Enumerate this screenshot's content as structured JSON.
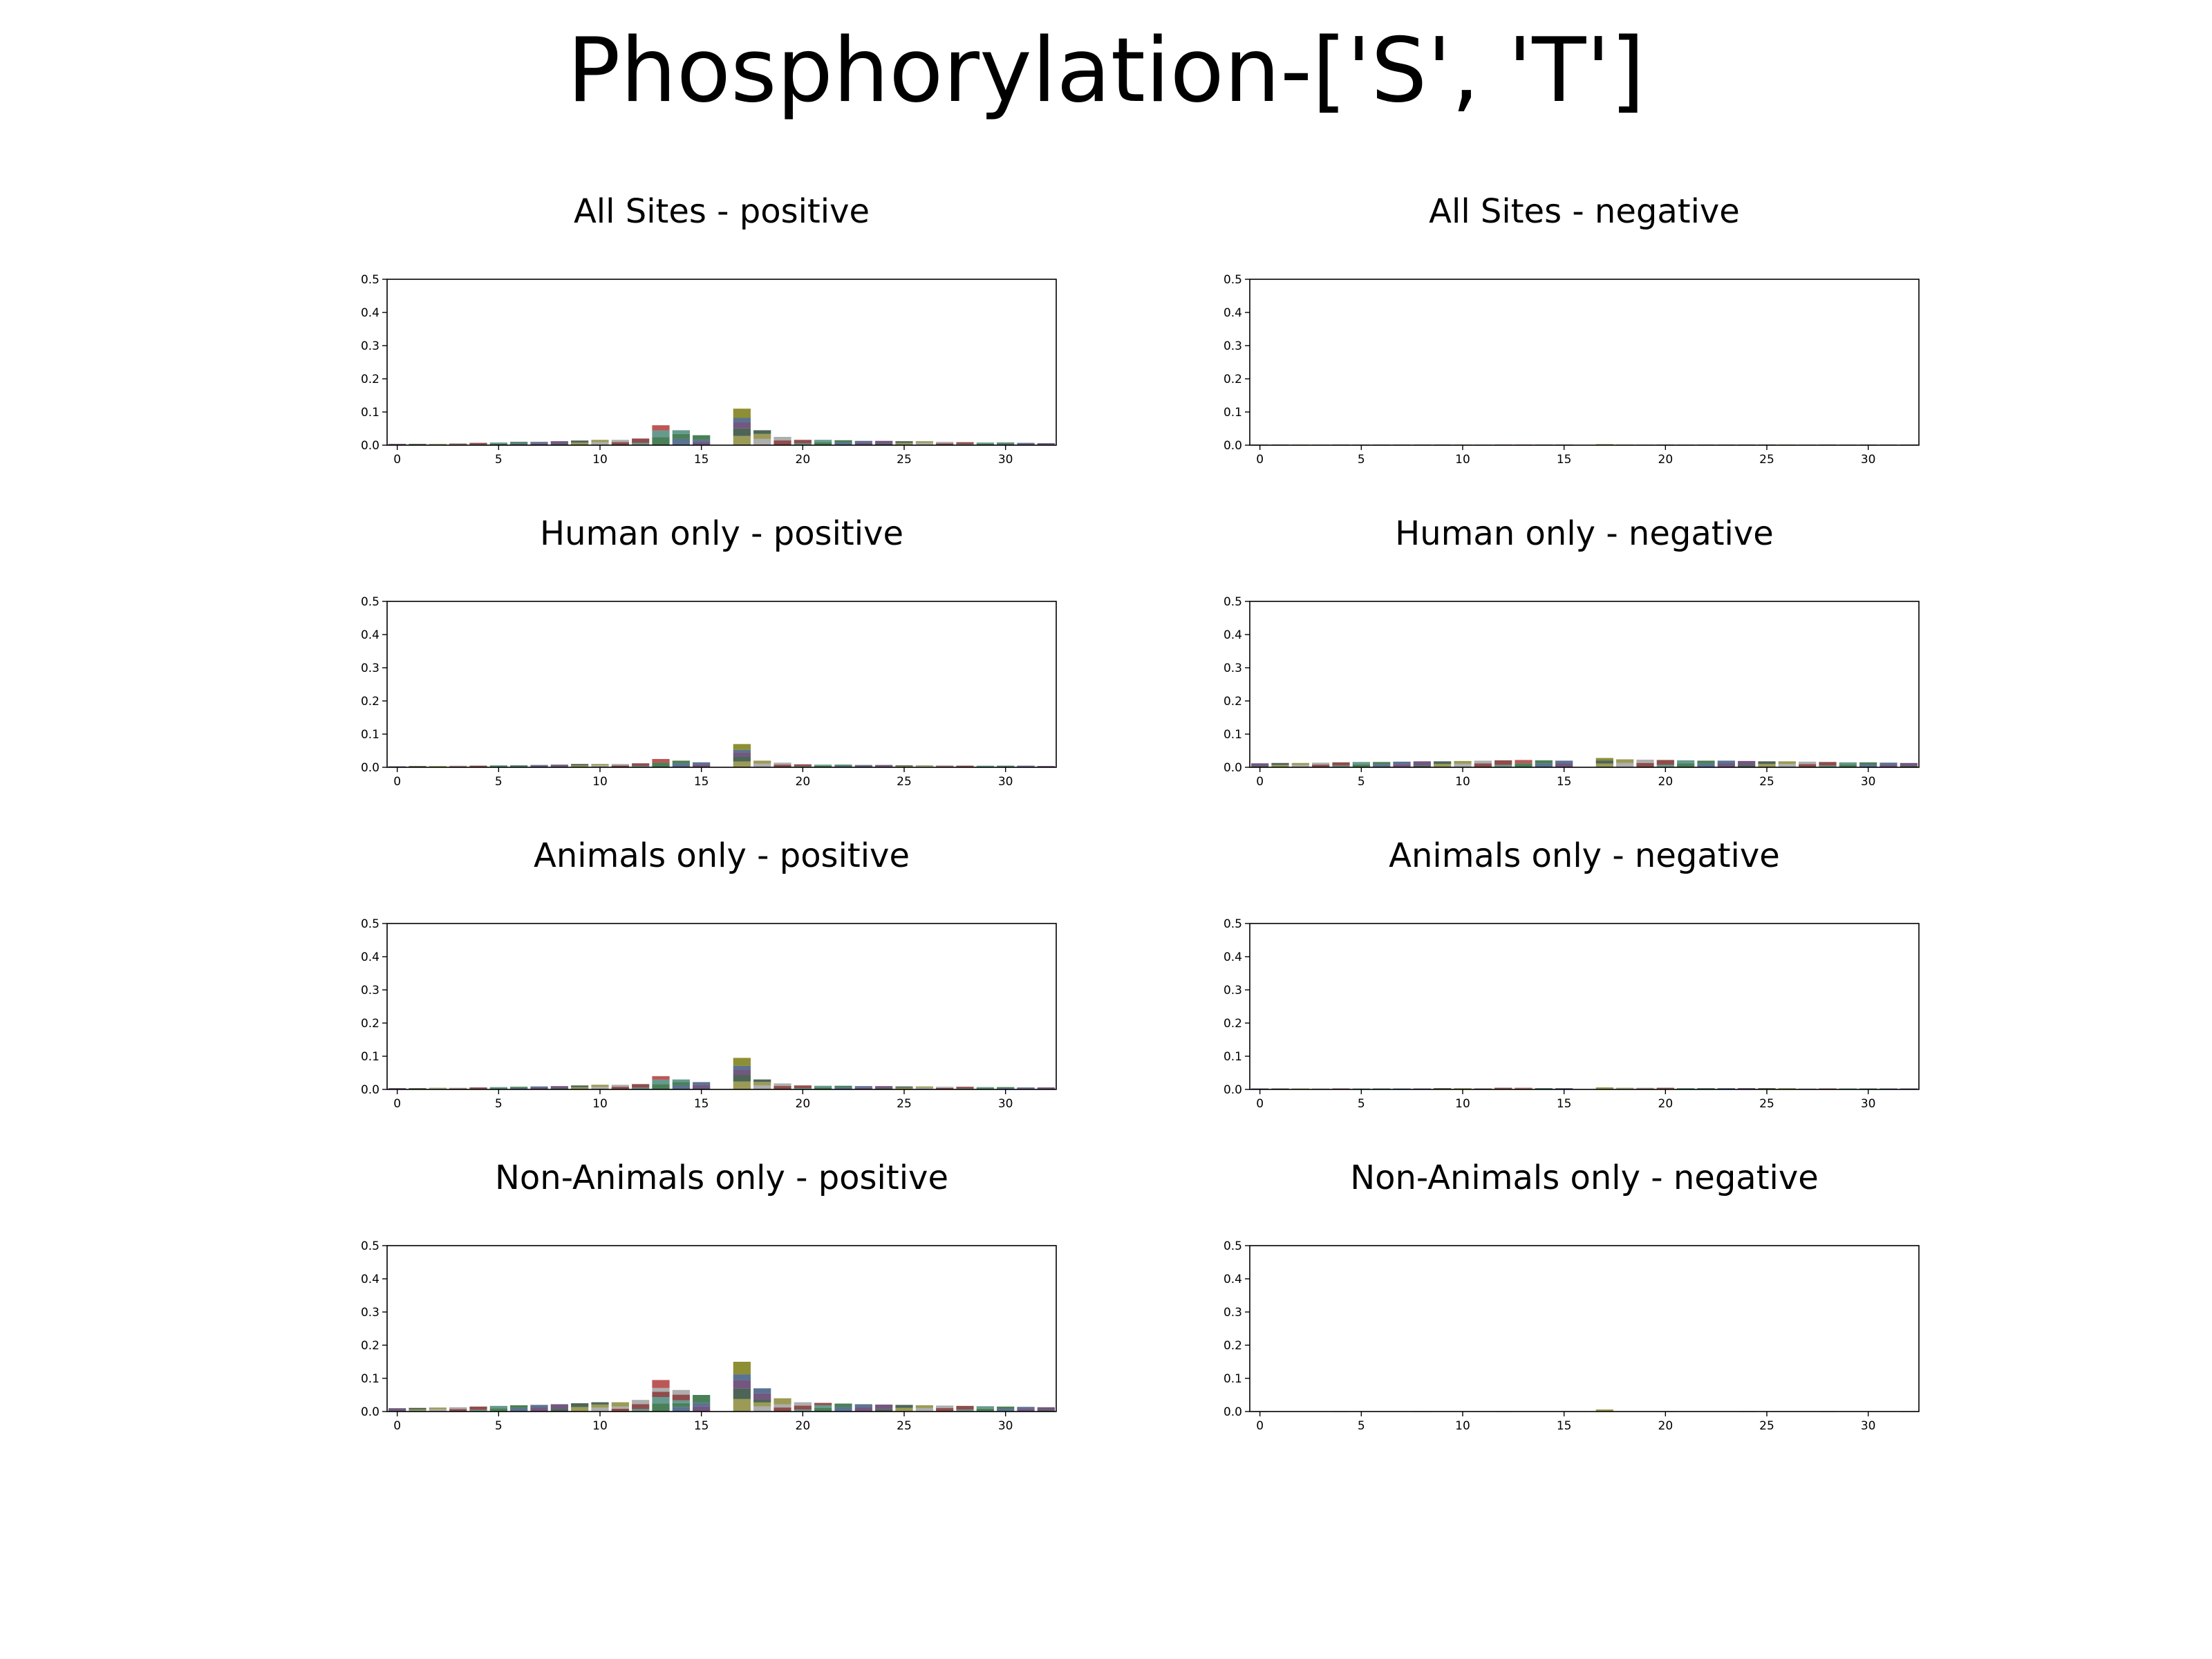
{
  "suptitle": "Phosphorylation-['S', 'T']",
  "chart_data": [
    {
      "type": "bar",
      "title": "All Sites - positive",
      "x": [
        0,
        1,
        2,
        3,
        4,
        5,
        6,
        7,
        8,
        9,
        10,
        11,
        12,
        13,
        14,
        15,
        16,
        17,
        18,
        19,
        20,
        21,
        22,
        23,
        24,
        25,
        26,
        27,
        28,
        29,
        30,
        31,
        32
      ],
      "values": [
        0.004,
        0.004,
        0.004,
        0.006,
        0.007,
        0.008,
        0.01,
        0.01,
        0.012,
        0.014,
        0.016,
        0.016,
        0.02,
        0.06,
        0.045,
        0.03,
        0.0,
        0.11,
        0.045,
        0.025,
        0.016,
        0.016,
        0.015,
        0.013,
        0.013,
        0.012,
        0.012,
        0.01,
        0.009,
        0.008,
        0.008,
        0.007,
        0.006
      ],
      "xticks": [
        0,
        5,
        10,
        15,
        20,
        25,
        30
      ],
      "yticks": [
        0.0,
        0.1,
        0.2,
        0.3,
        0.4,
        0.5
      ],
      "xlim": [
        -0.5,
        32.5
      ],
      "ylim": [
        0,
        0.5
      ]
    },
    {
      "type": "bar",
      "title": "All Sites - negative",
      "x": [
        0,
        1,
        2,
        3,
        4,
        5,
        6,
        7,
        8,
        9,
        10,
        11,
        12,
        13,
        14,
        15,
        16,
        17,
        18,
        19,
        20,
        21,
        22,
        23,
        24,
        25,
        26,
        27,
        28,
        29,
        30,
        31,
        32
      ],
      "values": [
        0.002,
        0.002,
        0.002,
        0.002,
        0.002,
        0.002,
        0.002,
        0.002,
        0.002,
        0.002,
        0.002,
        0.002,
        0.002,
        0.002,
        0.002,
        0.002,
        0.0,
        0.003,
        0.002,
        0.002,
        0.002,
        0.002,
        0.002,
        0.002,
        0.002,
        0.002,
        0.002,
        0.002,
        0.002,
        0.002,
        0.002,
        0.002,
        0.002
      ],
      "xticks": [
        0,
        5,
        10,
        15,
        20,
        25,
        30
      ],
      "yticks": [
        0.0,
        0.1,
        0.2,
        0.3,
        0.4,
        0.5
      ],
      "xlim": [
        -0.5,
        32.5
      ],
      "ylim": [
        0,
        0.5
      ]
    },
    {
      "type": "bar",
      "title": "Human only - positive",
      "x": [
        0,
        1,
        2,
        3,
        4,
        5,
        6,
        7,
        8,
        9,
        10,
        11,
        12,
        13,
        14,
        15,
        16,
        17,
        18,
        19,
        20,
        21,
        22,
        23,
        24,
        25,
        26,
        27,
        28,
        29,
        30,
        31,
        32
      ],
      "values": [
        0.003,
        0.004,
        0.004,
        0.005,
        0.005,
        0.006,
        0.006,
        0.007,
        0.008,
        0.01,
        0.01,
        0.01,
        0.012,
        0.025,
        0.02,
        0.015,
        0.0,
        0.07,
        0.02,
        0.014,
        0.009,
        0.008,
        0.008,
        0.007,
        0.007,
        0.006,
        0.006,
        0.006,
        0.005,
        0.005,
        0.005,
        0.005,
        0.004
      ],
      "xticks": [
        0,
        5,
        10,
        15,
        20,
        25,
        30
      ],
      "yticks": [
        0.0,
        0.1,
        0.2,
        0.3,
        0.4,
        0.5
      ],
      "xlim": [
        -0.5,
        32.5
      ],
      "ylim": [
        0,
        0.5
      ]
    },
    {
      "type": "bar",
      "title": "Human only - negative",
      "x": [
        0,
        1,
        2,
        3,
        4,
        5,
        6,
        7,
        8,
        9,
        10,
        11,
        12,
        13,
        14,
        15,
        16,
        17,
        18,
        19,
        20,
        21,
        22,
        23,
        24,
        25,
        26,
        27,
        28,
        29,
        30,
        31,
        32
      ],
      "values": [
        0.012,
        0.013,
        0.013,
        0.014,
        0.015,
        0.016,
        0.016,
        0.017,
        0.018,
        0.018,
        0.019,
        0.02,
        0.021,
        0.022,
        0.021,
        0.02,
        0.0,
        0.028,
        0.024,
        0.023,
        0.022,
        0.021,
        0.02,
        0.02,
        0.019,
        0.018,
        0.018,
        0.017,
        0.016,
        0.015,
        0.015,
        0.014,
        0.013
      ],
      "xticks": [
        0,
        5,
        10,
        15,
        20,
        25,
        30
      ],
      "yticks": [
        0.0,
        0.1,
        0.2,
        0.3,
        0.4,
        0.5
      ],
      "xlim": [
        -0.5,
        32.5
      ],
      "ylim": [
        0,
        0.5
      ]
    },
    {
      "type": "bar",
      "title": "Animals only - positive",
      "x": [
        0,
        1,
        2,
        3,
        4,
        5,
        6,
        7,
        8,
        9,
        10,
        11,
        12,
        13,
        14,
        15,
        16,
        17,
        18,
        19,
        20,
        21,
        22,
        23,
        24,
        25,
        26,
        27,
        28,
        29,
        30,
        31,
        32
      ],
      "values": [
        0.004,
        0.004,
        0.005,
        0.005,
        0.006,
        0.007,
        0.008,
        0.009,
        0.01,
        0.012,
        0.014,
        0.014,
        0.016,
        0.04,
        0.03,
        0.022,
        0.0,
        0.095,
        0.03,
        0.018,
        0.012,
        0.011,
        0.011,
        0.01,
        0.01,
        0.009,
        0.009,
        0.008,
        0.008,
        0.007,
        0.007,
        0.006,
        0.006
      ],
      "xticks": [
        0,
        5,
        10,
        15,
        20,
        25,
        30
      ],
      "yticks": [
        0.0,
        0.1,
        0.2,
        0.3,
        0.4,
        0.5
      ],
      "xlim": [
        -0.5,
        32.5
      ],
      "ylim": [
        0,
        0.5
      ]
    },
    {
      "type": "bar",
      "title": "Animals only - negative",
      "x": [
        0,
        1,
        2,
        3,
        4,
        5,
        6,
        7,
        8,
        9,
        10,
        11,
        12,
        13,
        14,
        15,
        16,
        17,
        18,
        19,
        20,
        21,
        22,
        23,
        24,
        25,
        26,
        27,
        28,
        29,
        30,
        31,
        32
      ],
      "values": [
        0.003,
        0.003,
        0.003,
        0.003,
        0.003,
        0.003,
        0.003,
        0.003,
        0.003,
        0.004,
        0.004,
        0.004,
        0.005,
        0.005,
        0.004,
        0.004,
        0.0,
        0.006,
        0.005,
        0.005,
        0.005,
        0.004,
        0.004,
        0.004,
        0.004,
        0.004,
        0.004,
        0.003,
        0.003,
        0.003,
        0.003,
        0.003,
        0.003
      ],
      "xticks": [
        0,
        5,
        10,
        15,
        20,
        25,
        30
      ],
      "yticks": [
        0.0,
        0.1,
        0.2,
        0.3,
        0.4,
        0.5
      ],
      "xlim": [
        -0.5,
        32.5
      ],
      "ylim": [
        0,
        0.5
      ]
    },
    {
      "type": "bar",
      "title": "Non-Animals only - positive",
      "x": [
        0,
        1,
        2,
        3,
        4,
        5,
        6,
        7,
        8,
        9,
        10,
        11,
        12,
        13,
        14,
        15,
        16,
        17,
        18,
        19,
        20,
        21,
        22,
        23,
        24,
        25,
        26,
        27,
        28,
        29,
        30,
        31,
        32
      ],
      "values": [
        0.01,
        0.011,
        0.012,
        0.013,
        0.015,
        0.017,
        0.019,
        0.02,
        0.022,
        0.025,
        0.028,
        0.028,
        0.035,
        0.095,
        0.065,
        0.05,
        0.0,
        0.15,
        0.07,
        0.04,
        0.028,
        0.026,
        0.024,
        0.022,
        0.021,
        0.02,
        0.019,
        0.018,
        0.017,
        0.016,
        0.015,
        0.014,
        0.013
      ],
      "xticks": [
        0,
        5,
        10,
        15,
        20,
        25,
        30
      ],
      "yticks": [
        0.0,
        0.1,
        0.2,
        0.3,
        0.4,
        0.5
      ],
      "xlim": [
        -0.5,
        32.5
      ],
      "ylim": [
        0,
        0.5
      ]
    },
    {
      "type": "bar",
      "title": "Non-Animals only - negative",
      "x": [
        0,
        1,
        2,
        3,
        4,
        5,
        6,
        7,
        8,
        9,
        10,
        11,
        12,
        13,
        14,
        15,
        16,
        17,
        18,
        19,
        20,
        21,
        22,
        23,
        24,
        25,
        26,
        27,
        28,
        29,
        30,
        31,
        32
      ],
      "values": [
        0.001,
        0.001,
        0.001,
        0.001,
        0.001,
        0.001,
        0.001,
        0.001,
        0.001,
        0.001,
        0.001,
        0.001,
        0.001,
        0.001,
        0.001,
        0.001,
        0.0,
        0.006,
        0.001,
        0.001,
        0.001,
        0.001,
        0.001,
        0.001,
        0.001,
        0.001,
        0.001,
        0.001,
        0.001,
        0.001,
        0.001,
        0.001,
        0.001
      ],
      "xticks": [
        0,
        5,
        10,
        15,
        20,
        25,
        30
      ],
      "yticks": [
        0.0,
        0.1,
        0.2,
        0.3,
        0.4,
        0.5
      ],
      "xlim": [
        -0.5,
        32.5
      ],
      "ylim": [
        0,
        0.5
      ]
    }
  ]
}
